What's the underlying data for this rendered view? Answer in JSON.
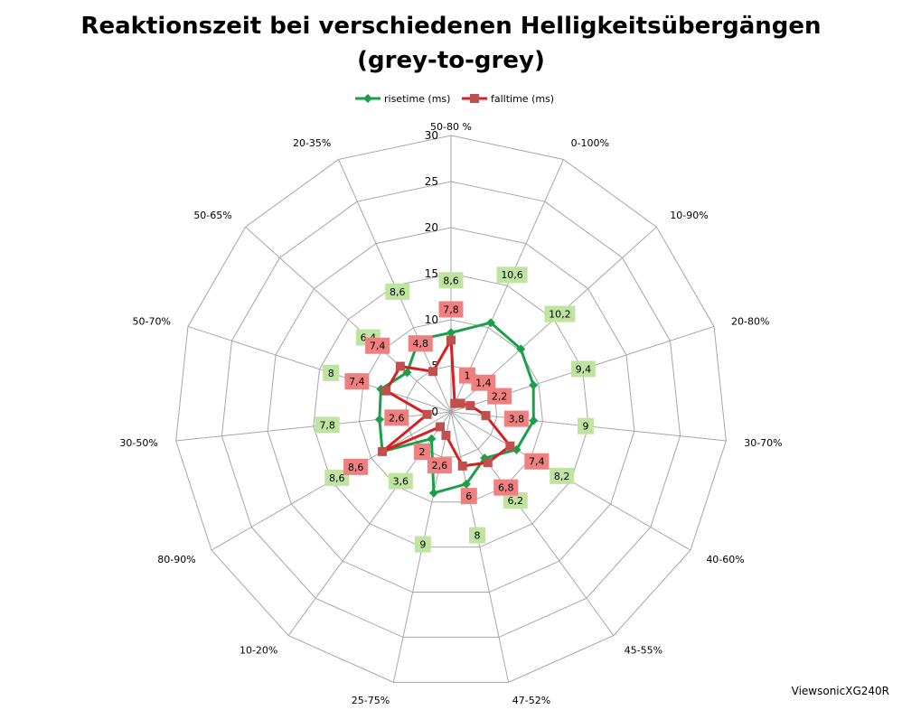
{
  "chart_data": {
    "type": "radar",
    "title": [
      "Reaktionszeit bei verschiedenen Helligkeitsübergängen",
      "(grey-to-grey)"
    ],
    "categories": [
      "50-80 %",
      "0-100%",
      "10-90%",
      "20-80%",
      "30-70%",
      "40-60%",
      "45-55%",
      "47-52%",
      "25-75%",
      "10-20%",
      "80-90%",
      "30-50%",
      "50-70%",
      "50-65%",
      "20-35%"
    ],
    "radial_axis": {
      "min": 0,
      "max": 30,
      "step": 5,
      "ticks": [
        "0",
        "5",
        "10",
        "15",
        "20",
        "25",
        "30"
      ]
    },
    "grid": true,
    "legend_position": "top",
    "series": [
      {
        "name": "risetime (ms)",
        "color": "#1aa04a",
        "label_bg": "#bfe3a0",
        "marker": "diamond",
        "values": [
          8.6,
          10.6,
          10.2,
          9.4,
          9,
          8.2,
          6.2,
          8,
          9,
          3.6,
          8.6,
          7.8,
          8,
          6.4,
          8.6
        ],
        "labels": [
          "8,6",
          "10,6",
          "10,2",
          "9,4",
          "9",
          "8,2",
          "6,2",
          "8",
          "9",
          "3,6",
          "8,6",
          "7,8",
          "8",
          "6,4",
          "8,6"
        ]
      },
      {
        "name": "falltime (ms)",
        "color": "#d81e1e",
        "label_bg": "#f08080",
        "marker": "square",
        "values": [
          7.8,
          1,
          1.4,
          2.2,
          3.8,
          7.4,
          6.8,
          6,
          2.6,
          2,
          8.6,
          2.6,
          7.4,
          7.4,
          4.8
        ],
        "labels": [
          "7,8",
          "1",
          "1,4",
          "2,2",
          "3,8",
          "7,4",
          "6,8",
          "6",
          "2,6",
          "2",
          "8,6",
          "2,6",
          "7,4",
          "7,4",
          "4,8"
        ]
      }
    ]
  },
  "footer": {
    "note": "ViewsonicXG240R"
  }
}
